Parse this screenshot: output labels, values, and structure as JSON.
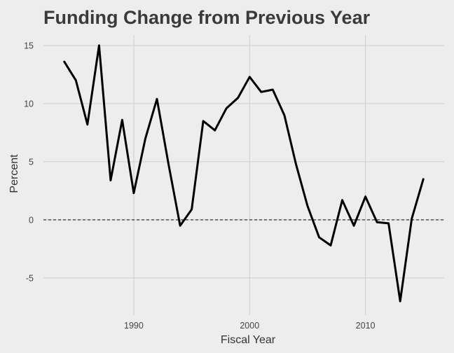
{
  "chart_data": {
    "type": "line",
    "title": "Funding Change from Previous Year",
    "xlabel": "Fiscal Year",
    "ylabel": "Percent",
    "xlim": [
      1982.2,
      2016.8
    ],
    "ylim": [
      -8.2,
      15.9
    ],
    "x_ticks": [
      1990,
      2000,
      2010
    ],
    "y_ticks": [
      -5,
      0,
      5,
      10,
      15
    ],
    "grid": true,
    "reference_line": {
      "y": 0,
      "style": "dashed"
    },
    "series": [
      {
        "x": [
          1984,
          1985,
          1986,
          1987,
          1988,
          1989,
          1990,
          1991,
          1992,
          1993,
          1994,
          1995,
          1996,
          1997,
          1998,
          1999,
          2000,
          2001,
          2002,
          2003,
          2004,
          2005,
          2006,
          2007,
          2008,
          2009,
          2010,
          2011,
          2012,
          2013,
          2014,
          2015
        ],
        "y": [
          13.6,
          12.0,
          8.2,
          15.0,
          3.4,
          8.6,
          2.3,
          7.0,
          10.4,
          4.8,
          -0.5,
          0.9,
          8.5,
          7.7,
          9.6,
          10.5,
          12.3,
          11.0,
          11.2,
          9.0,
          4.8,
          1.2,
          -1.5,
          -2.2,
          1.7,
          -0.5,
          2.0,
          -0.2,
          -0.3,
          -7.0,
          0.1,
          3.5
        ],
        "color": "#000000"
      }
    ]
  }
}
